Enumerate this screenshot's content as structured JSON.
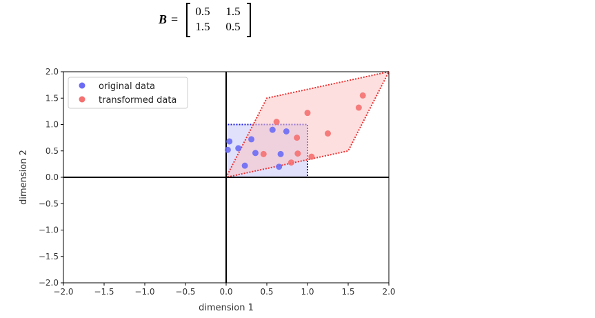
{
  "equation": {
    "label": "B",
    "equals": "=",
    "matrix": [
      [
        "0.5",
        "1.5"
      ],
      [
        "1.5",
        "0.5"
      ]
    ]
  },
  "chart_data": {
    "type": "scatter",
    "title": "",
    "xlabel": "dimension 1",
    "ylabel": "dimension 2",
    "xlim": [
      -2.0,
      2.0
    ],
    "ylim": [
      -2.0,
      2.0
    ],
    "xticks": [
      "−2.0",
      "−1.5",
      "−1.0",
      "−0.5",
      "0.0",
      "0.5",
      "1.0",
      "1.5",
      "2.0"
    ],
    "yticks": [
      "−2.0",
      "−1.5",
      "−1.0",
      "−0.5",
      "0.0",
      "0.5",
      "1.0",
      "1.5",
      "2.0"
    ],
    "xtick_values": [
      -2.0,
      -1.5,
      -1.0,
      -0.5,
      0.0,
      0.5,
      1.0,
      1.5,
      2.0
    ],
    "ytick_values": [
      -2.0,
      -1.5,
      -1.0,
      -0.5,
      0.0,
      0.5,
      1.0,
      1.5,
      2.0
    ],
    "grid": false,
    "legend": "top-left",
    "series": [
      {
        "name": "original data",
        "color": "#6b6bf5",
        "points": [
          [
            0.04,
            0.68
          ],
          [
            0.02,
            0.52
          ],
          [
            0.15,
            0.55
          ],
          [
            0.23,
            0.22
          ],
          [
            0.31,
            0.72
          ],
          [
            0.36,
            0.46
          ],
          [
            0.57,
            0.9
          ],
          [
            0.74,
            0.87
          ],
          [
            0.67,
            0.44
          ],
          [
            0.65,
            0.2
          ]
        ]
      },
      {
        "name": "transformed data",
        "color": "#f57070",
        "points": [
          [
            0.46,
            0.44
          ],
          [
            0.62,
            1.05
          ],
          [
            0.8,
            0.28
          ],
          [
            0.87,
            0.75
          ],
          [
            0.88,
            0.45
          ],
          [
            1.0,
            1.22
          ],
          [
            1.05,
            0.39
          ],
          [
            1.25,
            0.83
          ],
          [
            1.63,
            1.32
          ],
          [
            1.68,
            1.55
          ]
        ]
      }
    ],
    "regions": [
      {
        "name": "unit-square",
        "fill": "#c8c8fa",
        "stroke": "#2020e0",
        "points": [
          [
            0,
            0
          ],
          [
            1,
            0
          ],
          [
            1,
            1
          ],
          [
            0,
            1
          ]
        ]
      },
      {
        "name": "transformed-square",
        "fill": "#fbc4c4",
        "stroke": "#f03030",
        "points": [
          [
            0,
            0
          ],
          [
            0.5,
            1.5
          ],
          [
            2.0,
            2.0
          ],
          [
            1.5,
            0.5
          ]
        ]
      }
    ]
  }
}
